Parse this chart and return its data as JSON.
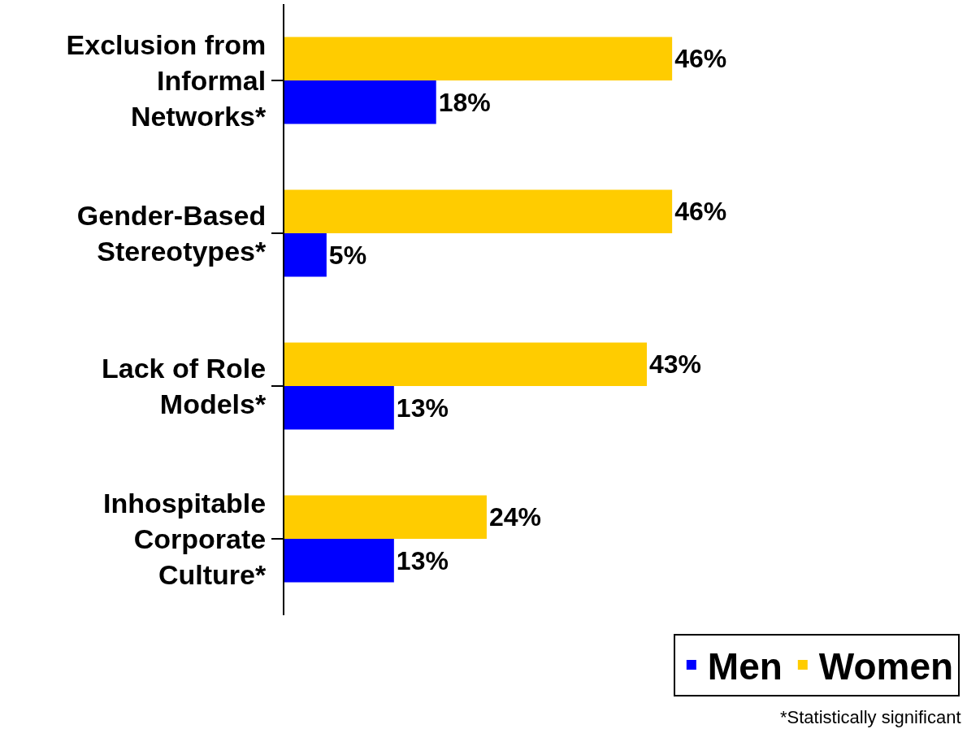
{
  "chart_data": {
    "type": "bar",
    "orientation": "horizontal",
    "categories": [
      "Exclusion from Informal Networks*",
      "Gender-Based Stereotypes*",
      "Lack of Role Models*",
      "Inhospitable Corporate Culture*"
    ],
    "series": [
      {
        "name": "Women",
        "color": "#ffcc00",
        "values": [
          46,
          46,
          43,
          24
        ],
        "value_labels": [
          "46%",
          "46%",
          "43%",
          "24%"
        ]
      },
      {
        "name": "Men",
        "color": "#0000ff",
        "values": [
          18,
          5,
          13,
          13
        ],
        "value_labels": [
          "18%",
          "5%",
          "13%",
          "13%"
        ]
      }
    ],
    "legend": "bottom right",
    "tick_labels": "y",
    "annotations": [
      "*Statistically significant"
    ]
  }
}
